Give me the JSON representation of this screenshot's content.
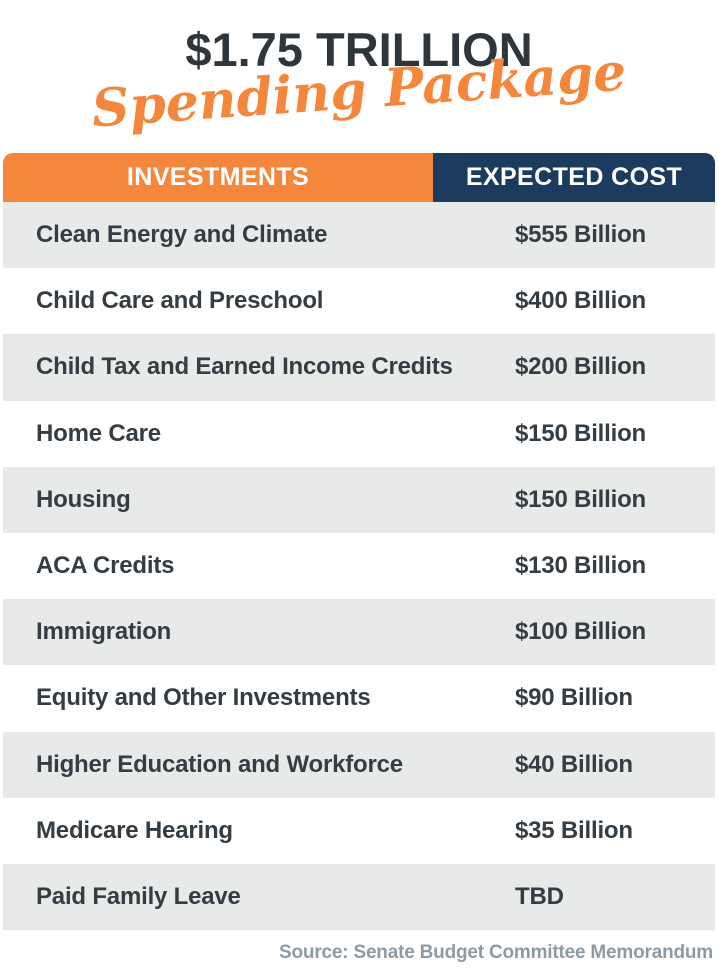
{
  "title": {
    "line1": "$1.75 TRILLION",
    "line2": "Spending Package"
  },
  "table": {
    "headers": [
      {
        "label": "INVESTMENTS"
      },
      {
        "label": "EXPECTED COST"
      }
    ],
    "rows": [
      {
        "investment": "Clean Energy and Climate",
        "cost": "$555 Billion"
      },
      {
        "investment": "Child Care and Preschool",
        "cost": "$400 Billion"
      },
      {
        "investment": "Child Tax and Earned Income Credits",
        "cost": "$200 Billion"
      },
      {
        "investment": "Home Care",
        "cost": "$150 Billion"
      },
      {
        "investment": "Housing",
        "cost": "$150 Billion"
      },
      {
        "investment": "ACA Credits",
        "cost": "$130 Billion"
      },
      {
        "investment": "Immigration",
        "cost": "$100 Billion"
      },
      {
        "investment": "Equity and Other Investments",
        "cost": "$90 Billion"
      },
      {
        "investment": "Higher Education and Workforce",
        "cost": "$40 Billion"
      },
      {
        "investment": "Medicare Hearing",
        "cost": "$35 Billion"
      },
      {
        "investment": "Paid Family Leave",
        "cost": "TBD"
      }
    ]
  },
  "footer": {
    "source": "Source: Senate Budget Committee Memorandum"
  },
  "colors": {
    "orange": "#F5873C",
    "navy": "#1B3B5F",
    "charcoal": "#2F363B",
    "row_gray": "#E8EAEA",
    "text_dark": "#343D43",
    "source_gray": "#8D9AA3"
  },
  "chart_data": {
    "type": "table",
    "title": "$1.75 Trillion Spending Package",
    "columns": [
      "INVESTMENTS",
      "EXPECTED COST"
    ],
    "rows": [
      [
        "Clean Energy and Climate",
        "$555 Billion"
      ],
      [
        "Child Care and Preschool",
        "$400 Billion"
      ],
      [
        "Child Tax and Earned Income Credits",
        "$200 Billion"
      ],
      [
        "Home Care",
        "$150 Billion"
      ],
      [
        "Housing",
        "$150 Billion"
      ],
      [
        "ACA Credits",
        "$130 Billion"
      ],
      [
        "Immigration",
        "$100 Billion"
      ],
      [
        "Equity and Other Investments",
        "$90 Billion"
      ],
      [
        "Higher Education and Workforce",
        "$40 Billion"
      ],
      [
        "Medicare Hearing",
        "$35 Billion"
      ],
      [
        "Paid Family Leave",
        "TBD"
      ]
    ],
    "values_billion_usd": [
      555,
      400,
      200,
      150,
      150,
      130,
      100,
      90,
      40,
      35,
      null
    ],
    "source": "Source: Senate Budget Committee Memorandum"
  }
}
